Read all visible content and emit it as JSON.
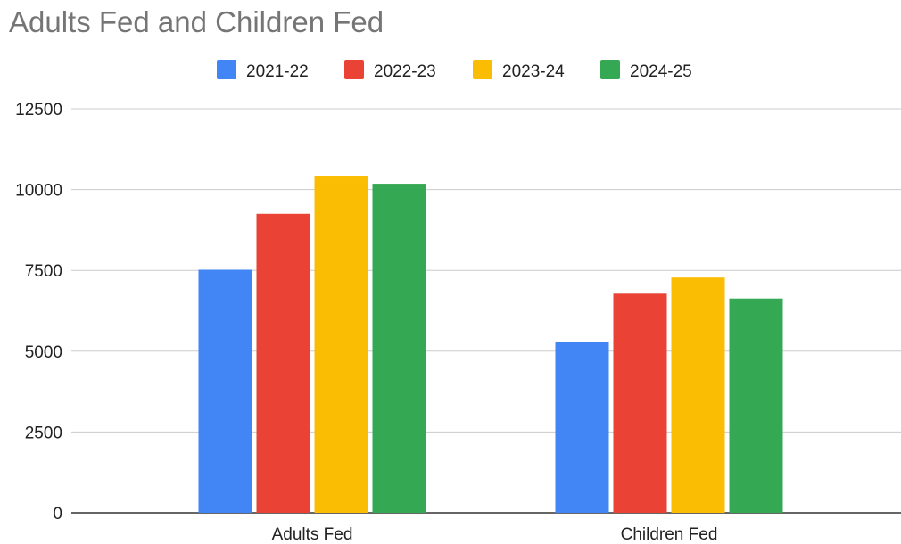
{
  "chart_data": {
    "type": "bar",
    "title": "Adults Fed and Children Fed",
    "xlabel": "",
    "ylabel": "",
    "categories": [
      "Adults Fed",
      "Children Fed"
    ],
    "series": [
      {
        "name": "2021-22",
        "color": "#4285F4",
        "values": [
          7520,
          5290
        ]
      },
      {
        "name": "2022-23",
        "color": "#EA4335",
        "values": [
          9250,
          6780
        ]
      },
      {
        "name": "2023-24",
        "color": "#FBBC04",
        "values": [
          10430,
          7280
        ]
      },
      {
        "name": "2024-25",
        "color": "#34A853",
        "values": [
          10180,
          6630
        ]
      }
    ],
    "ylim": [
      0,
      12500
    ],
    "yticks": [
      0,
      2500,
      5000,
      7500,
      10000,
      12500
    ],
    "grid": true,
    "legend_position": "top-center"
  }
}
